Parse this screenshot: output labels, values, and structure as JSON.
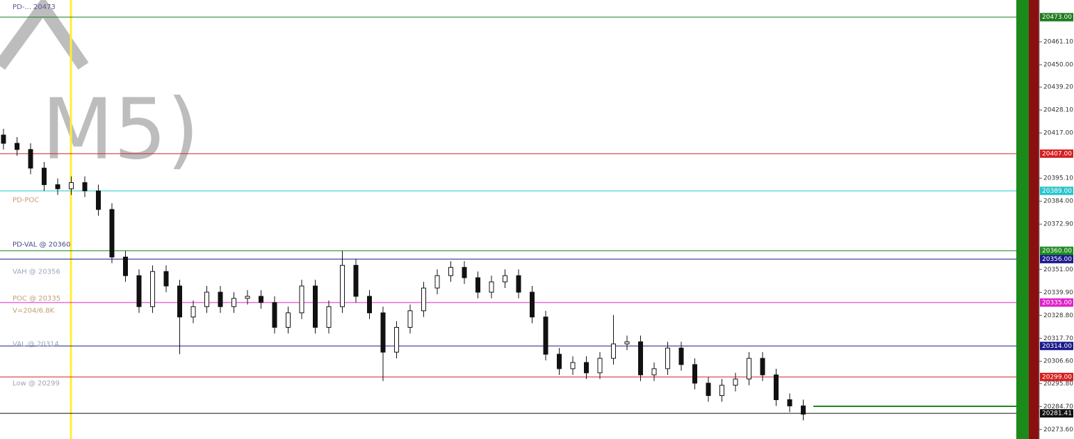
{
  "chart_data": {
    "type": "candlestick",
    "watermark": "M5)",
    "ylim": [
      20269.0,
      20481.3
    ],
    "yticks": [
      {
        "value": 20461.1,
        "label": "20461.10"
      },
      {
        "value": 20450,
        "label": "20450.00"
      },
      {
        "value": 20439.2,
        "label": "20439.20"
      },
      {
        "value": 20428.1,
        "label": "20428.10"
      },
      {
        "value": 20417,
        "label": "20417.00"
      },
      {
        "value": 20395.1,
        "label": "20395.10"
      },
      {
        "value": 20384,
        "label": "20384.00"
      },
      {
        "value": 20372.9,
        "label": "20372.90"
      },
      {
        "value": 20351,
        "label": "20351.00"
      },
      {
        "value": 20339.9,
        "label": "20339.90"
      },
      {
        "value": 20328.8,
        "label": "20328.80"
      },
      {
        "value": 20317.7,
        "label": "20317.70"
      },
      {
        "value": 20306.6,
        "label": "20306.60"
      },
      {
        "value": 20295.8,
        "label": "20295.80"
      },
      {
        "value": 20284.7,
        "label": "20284.70"
      },
      {
        "value": 20273.6,
        "label": "20273.60"
      }
    ],
    "levels": [
      {
        "value": 20473,
        "label": "20473.00",
        "color": "#1f7a1f"
      },
      {
        "value": 20407,
        "label": "20407.00",
        "color": "#d42020"
      },
      {
        "value": 20389,
        "label": "20389.00",
        "color": "#29c4cc"
      },
      {
        "value": 20360,
        "label": "20360.00",
        "color": "#1f8a1f"
      },
      {
        "value": 20356,
        "label": "20356.00",
        "color": "#1a1a8c"
      },
      {
        "value": 20335,
        "label": "20335.00",
        "color": "#e020c8"
      },
      {
        "value": 20314,
        "label": "20314.00",
        "color": "#1a1a8c"
      },
      {
        "value": 20299,
        "label": "20299.00",
        "color": "#d42020"
      },
      {
        "value": 20281.41,
        "label": "20281.41",
        "color": "#111111"
      }
    ],
    "annotations": [
      {
        "text": "PD-... 20473",
        "value": 20478,
        "color": "#5b5b9a"
      },
      {
        "text": "PD-POC",
        "value": 20384.5,
        "color": "#c89a7a"
      },
      {
        "text": "PD-VAL @ 20360",
        "value": 20363,
        "color": "#4a4a8a"
      },
      {
        "text": "VAH @ 20356",
        "value": 20350,
        "color": "#9aa8c0"
      },
      {
        "text": "POC @ 20335",
        "value": 20337,
        "color": "#c0a070"
      },
      {
        "text": "V=204/6.8K",
        "value": 20331,
        "color": "#c0a070"
      },
      {
        "text": "VAL @ 20314",
        "value": 20315,
        "color": "#9aa8c0"
      },
      {
        "text": "Low @ 20299",
        "value": 20296,
        "color": "#9aa8b0"
      }
    ],
    "open": [
      20416,
      20412,
      20409,
      20400,
      20392,
      20390,
      20393,
      20389,
      20380,
      20357,
      20348,
      20333,
      20350,
      20343,
      20328,
      20333,
      20340,
      20333,
      20337,
      20338,
      20335,
      20323,
      20330,
      20343,
      20323,
      20333,
      20353,
      20338,
      20330,
      20311,
      20323,
      20331,
      20342,
      20348,
      20352,
      20347,
      20340,
      20345,
      20348,
      20340,
      20328,
      20310,
      20303,
      20306,
      20301,
      20308,
      20315,
      20316,
      20300,
      20303,
      20313,
      20305,
      20296,
      20290,
      20295,
      20298,
      20308,
      20300,
      20288,
      20285
    ],
    "high": [
      20419,
      20415,
      20412,
      20403,
      20395,
      20396,
      20396,
      20392,
      20383,
      20360,
      20351,
      20353,
      20353,
      20346,
      20336,
      20343,
      20343,
      20340,
      20341,
      20341,
      20338,
      20333,
      20346,
      20346,
      20336,
      20360,
      20356,
      20341,
      20333,
      20326,
      20334,
      20345,
      20351,
      20355,
      20355,
      20350,
      20348,
      20351,
      20351,
      20343,
      20331,
      20313,
      20309,
      20309,
      20311,
      20329,
      20319,
      20319,
      20306,
      20316,
      20316,
      20308,
      20299,
      20298,
      20301,
      20311,
      20311,
      20303,
      20291,
      20288
    ],
    "low": [
      20409,
      20406,
      20397,
      20389,
      20387,
      20387,
      20386,
      20377,
      20354,
      20345,
      20330,
      20330,
      20340,
      20310,
      20325,
      20330,
      20330,
      20330,
      20334,
      20332,
      20320,
      20320,
      20327,
      20320,
      20320,
      20330,
      20335,
      20327,
      20297,
      20308,
      20320,
      20328,
      20339,
      20345,
      20344,
      20337,
      20337,
      20342,
      20337,
      20325,
      20307,
      20300,
      20300,
      20298,
      20298,
      20305,
      20312,
      20297,
      20297,
      20300,
      20302,
      20293,
      20287,
      20287,
      20292,
      20295,
      20297,
      20285,
      20282,
      20278
    ],
    "close": [
      20412,
      20409,
      20400,
      20392,
      20390,
      20393,
      20389,
      20380,
      20357,
      20348,
      20333,
      20350,
      20343,
      20328,
      20333,
      20340,
      20333,
      20337,
      20338,
      20335,
      20323,
      20330,
      20343,
      20323,
      20333,
      20353,
      20338,
      20330,
      20311,
      20323,
      20331,
      20342,
      20348,
      20352,
      20347,
      20340,
      20345,
      20348,
      20340,
      20328,
      20310,
      20303,
      20306,
      20301,
      20308,
      20315,
      20316,
      20300,
      20303,
      20313,
      20305,
      20296,
      20290,
      20295,
      20298,
      20308,
      20300,
      20288,
      20285,
      20281
    ]
  }
}
